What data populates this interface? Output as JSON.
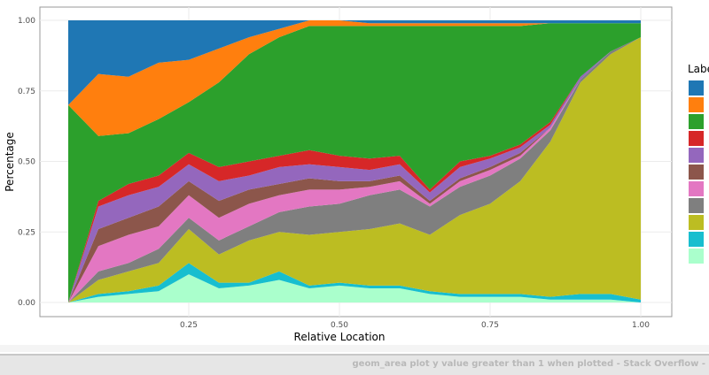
{
  "chart_data": {
    "type": "area",
    "stacked": true,
    "title": "",
    "xlabel": "Relative Location",
    "ylabel": "Percentage",
    "xlim": [
      0.05,
      1.0
    ],
    "ylim": [
      0,
      1
    ],
    "xticks": [
      "0.25",
      "0.50",
      "0.75",
      "1.00"
    ],
    "yticks": [
      "0.00",
      "0.25",
      "0.50",
      "0.75",
      "1.00"
    ],
    "grid": true,
    "legend": {
      "title": "Labe",
      "position": "right"
    },
    "x": [
      0.05,
      0.1,
      0.15,
      0.2,
      0.25,
      0.3,
      0.35,
      0.4,
      0.45,
      0.5,
      0.55,
      0.6,
      0.65,
      0.7,
      0.75,
      0.8,
      0.85,
      0.9,
      0.95,
      1.0
    ],
    "series": [
      {
        "color": "#aaffcc",
        "values": [
          0.0,
          0.02,
          0.03,
          0.04,
          0.1,
          0.05,
          0.06,
          0.08,
          0.05,
          0.06,
          0.05,
          0.05,
          0.03,
          0.02,
          0.02,
          0.02,
          0.01,
          0.01,
          0.01,
          0.0
        ]
      },
      {
        "color": "#17becf",
        "values": [
          0.0,
          0.01,
          0.01,
          0.02,
          0.04,
          0.02,
          0.01,
          0.03,
          0.01,
          0.01,
          0.01,
          0.01,
          0.01,
          0.01,
          0.01,
          0.01,
          0.01,
          0.02,
          0.02,
          0.01
        ]
      },
      {
        "color": "#bcbd22",
        "values": [
          0.0,
          0.05,
          0.07,
          0.08,
          0.12,
          0.1,
          0.15,
          0.14,
          0.18,
          0.18,
          0.2,
          0.22,
          0.2,
          0.28,
          0.32,
          0.4,
          0.55,
          0.75,
          0.85,
          0.93
        ]
      },
      {
        "color": "#7f7f7f",
        "values": [
          0.0,
          0.03,
          0.03,
          0.05,
          0.04,
          0.05,
          0.05,
          0.07,
          0.1,
          0.1,
          0.12,
          0.12,
          0.1,
          0.1,
          0.1,
          0.08,
          0.04,
          0.01,
          0.01,
          0.0
        ]
      },
      {
        "color": "#e377c2",
        "values": [
          0.0,
          0.09,
          0.1,
          0.08,
          0.08,
          0.08,
          0.08,
          0.06,
          0.06,
          0.05,
          0.03,
          0.03,
          0.01,
          0.02,
          0.02,
          0.01,
          0.01,
          0.0,
          0.0,
          0.0
        ]
      },
      {
        "color": "#8c564b",
        "values": [
          0.0,
          0.06,
          0.06,
          0.07,
          0.05,
          0.06,
          0.05,
          0.04,
          0.04,
          0.03,
          0.02,
          0.02,
          0.01,
          0.01,
          0.01,
          0.01,
          0.0,
          0.0,
          0.0,
          0.0
        ]
      },
      {
        "color": "#9467bd",
        "values": [
          0.0,
          0.08,
          0.08,
          0.07,
          0.06,
          0.07,
          0.05,
          0.06,
          0.05,
          0.05,
          0.04,
          0.04,
          0.03,
          0.04,
          0.03,
          0.02,
          0.01,
          0.01,
          0.0,
          0.0
        ]
      },
      {
        "color": "#d62728",
        "values": [
          0.0,
          0.02,
          0.04,
          0.04,
          0.04,
          0.05,
          0.05,
          0.04,
          0.05,
          0.04,
          0.04,
          0.03,
          0.01,
          0.02,
          0.01,
          0.01,
          0.01,
          0.0,
          0.0,
          0.0
        ]
      },
      {
        "color": "#2ca02c",
        "values": [
          0.7,
          0.23,
          0.18,
          0.2,
          0.18,
          0.3,
          0.38,
          0.42,
          0.44,
          0.46,
          0.47,
          0.46,
          0.58,
          0.48,
          0.46,
          0.42,
          0.35,
          0.19,
          0.1,
          0.05
        ]
      },
      {
        "color": "#ff7f0e",
        "values": [
          0.0,
          0.22,
          0.2,
          0.2,
          0.15,
          0.12,
          0.06,
          0.03,
          0.02,
          0.02,
          0.01,
          0.01,
          0.01,
          0.01,
          0.01,
          0.01,
          0.0,
          0.0,
          0.0,
          0.0
        ]
      },
      {
        "color": "#1f77b4",
        "values": [
          0.3,
          0.19,
          0.2,
          0.15,
          0.14,
          0.1,
          0.06,
          0.03,
          0.04,
          0.0,
          0.01,
          0.01,
          0.01,
          0.01,
          0.01,
          0.01,
          0.01,
          0.01,
          0.01,
          0.01
        ]
      }
    ]
  },
  "taskbar": {
    "window_title": "geom_area plot y value greater than 1 when plotted - Stack Overflow -"
  }
}
